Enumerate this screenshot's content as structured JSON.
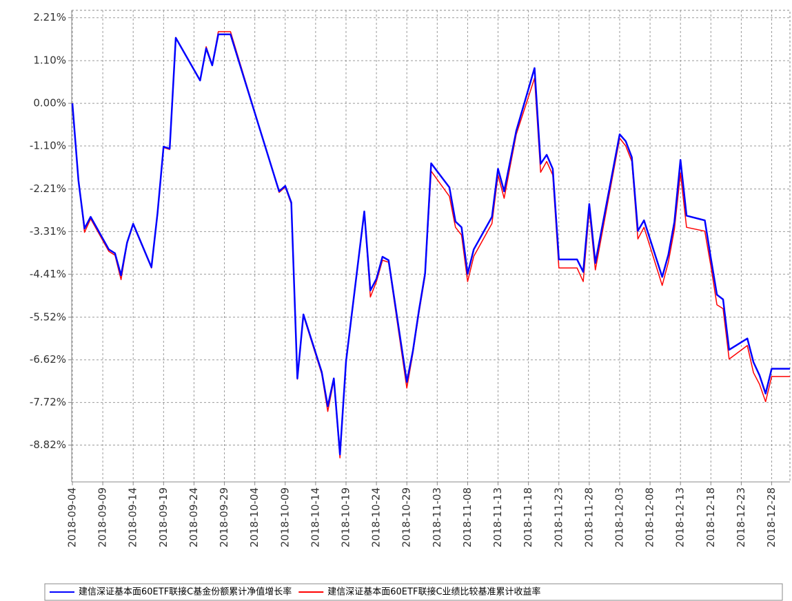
{
  "chart_data": {
    "type": "line",
    "x": [
      "2018-09-04",
      "2018-09-05",
      "2018-09-06",
      "2018-09-07",
      "2018-09-10",
      "2018-09-11",
      "2018-09-12",
      "2018-09-13",
      "2018-09-14",
      "2018-09-17",
      "2018-09-18",
      "2018-09-19",
      "2018-09-20",
      "2018-09-21",
      "2018-09-25",
      "2018-09-26",
      "2018-09-27",
      "2018-09-28",
      "2018-09-30",
      "2018-10-08",
      "2018-10-09",
      "2018-10-10",
      "2018-10-11",
      "2018-10-12",
      "2018-10-15",
      "2018-10-16",
      "2018-10-17",
      "2018-10-18",
      "2018-10-19",
      "2018-10-22",
      "2018-10-23",
      "2018-10-24",
      "2018-10-25",
      "2018-10-26",
      "2018-10-29",
      "2018-10-30",
      "2018-10-31",
      "2018-11-01",
      "2018-11-02",
      "2018-11-05",
      "2018-11-06",
      "2018-11-07",
      "2018-11-08",
      "2018-11-09",
      "2018-11-12",
      "2018-11-13",
      "2018-11-14",
      "2018-11-15",
      "2018-11-16",
      "2018-11-19",
      "2018-11-20",
      "2018-11-21",
      "2018-11-22",
      "2018-11-23",
      "2018-11-26",
      "2018-11-27",
      "2018-11-28",
      "2018-11-29",
      "2018-11-30",
      "2018-12-03",
      "2018-12-04",
      "2018-12-05",
      "2018-12-06",
      "2018-12-07",
      "2018-12-10",
      "2018-12-11",
      "2018-12-12",
      "2018-12-13",
      "2018-12-14",
      "2018-12-17",
      "2018-12-18",
      "2018-12-19",
      "2018-12-20",
      "2018-12-21",
      "2018-12-24",
      "2018-12-25",
      "2018-12-26",
      "2018-12-27",
      "2018-12-28",
      "2018-12-31"
    ],
    "series": [
      {
        "name": "建信深证基本面60ETF联接C基金份额累计净值增长率",
        "color": "#0000ff",
        "values": [
          0,
          -1.99,
          -3.23,
          -2.93,
          -3.77,
          -3.87,
          -4.44,
          -3.59,
          -3.11,
          -4.23,
          -2.84,
          -1.12,
          -1.17,
          1.69,
          0.59,
          1.42,
          0.98,
          1.78,
          1.78,
          -2.27,
          -2.13,
          -2.56,
          -7.1,
          -5.45,
          -6.93,
          -7.82,
          -7.1,
          -9.06,
          -6.66,
          -2.79,
          -4.83,
          -4.53,
          -3.96,
          -4.05,
          -7.19,
          -6.39,
          -5.33,
          -4.39,
          -1.55,
          -2.17,
          -3.05,
          -3.2,
          -4.4,
          -3.77,
          -2.93,
          -1.69,
          -2.27,
          -1.49,
          -0.71,
          0.91,
          -1.56,
          -1.33,
          -1.69,
          -4.03,
          -4.03,
          -4.35,
          -2.6,
          -4.12,
          -3.29,
          -0.8,
          -0.98,
          -1.39,
          -3.29,
          -3.02,
          -4.48,
          -3.91,
          -3.06,
          -1.46,
          -2.9,
          -3.02,
          -4.0,
          -4.94,
          -5.06,
          -6.36,
          -6.07,
          -6.68,
          -7.02,
          -7.49,
          -6.85,
          -6.85
        ]
      },
      {
        "name": "建信深证基本面60ETF联接C业绩比较基准累计收益率",
        "color": "#ff0000",
        "values": [
          0,
          -1.95,
          -3.33,
          -2.98,
          -3.82,
          -3.92,
          -4.55,
          -3.62,
          -3.13,
          -4.25,
          -2.88,
          -1.14,
          -1.19,
          1.7,
          0.6,
          1.46,
          1.0,
          1.85,
          1.85,
          -2.3,
          -2.16,
          -2.6,
          -7.12,
          -5.48,
          -6.98,
          -7.95,
          -7.15,
          -9.15,
          -6.7,
          -2.82,
          -5.0,
          -4.6,
          -4.05,
          -4.1,
          -7.35,
          -6.45,
          -5.4,
          -4.45,
          -1.75,
          -2.4,
          -3.2,
          -3.4,
          -4.6,
          -3.95,
          -3.1,
          -1.85,
          -2.45,
          -1.62,
          -0.8,
          0.65,
          -1.78,
          -1.5,
          -1.85,
          -4.25,
          -4.25,
          -4.6,
          -2.75,
          -4.3,
          -3.45,
          -0.9,
          -1.1,
          -1.5,
          -3.5,
          -3.2,
          -4.7,
          -4.1,
          -3.25,
          -1.8,
          -3.2,
          -3.3,
          -4.2,
          -5.2,
          -5.3,
          -6.6,
          -6.25,
          -6.95,
          -7.25,
          -7.7,
          -7.05,
          -7.05
        ]
      }
    ],
    "xlim": [
      "2018-09-04",
      "2018-12-31"
    ],
    "xticks": [
      "2018-09-04",
      "2018-09-09",
      "2018-09-14",
      "2018-09-19",
      "2018-09-24",
      "2018-09-29",
      "2018-10-04",
      "2018-10-09",
      "2018-10-14",
      "2018-10-19",
      "2018-10-24",
      "2018-10-29",
      "2018-11-03",
      "2018-11-08",
      "2018-11-13",
      "2018-11-18",
      "2018-11-23",
      "2018-11-28",
      "2018-12-03",
      "2018-12-08",
      "2018-12-13",
      "2018-12-18",
      "2018-12-23",
      "2018-12-28"
    ],
    "ylim": [
      -9.77,
      2.4
    ],
    "yticks": [
      {
        "value": 2.21,
        "label": "2.21%"
      },
      {
        "value": 1.1,
        "label": "1.10%"
      },
      {
        "value": 0,
        "label": "0.00%"
      },
      {
        "value": -1.1,
        "label": "-1.10%"
      },
      {
        "value": -2.21,
        "label": "-2.21%"
      },
      {
        "value": -3.31,
        "label": "-3.31%"
      },
      {
        "value": -4.41,
        "label": "-4.41%"
      },
      {
        "value": -5.52,
        "label": "-5.52%"
      },
      {
        "value": -6.62,
        "label": "-6.62%"
      },
      {
        "value": -7.72,
        "label": "-7.72%"
      },
      {
        "value": -8.82,
        "label": "-8.82%"
      }
    ],
    "grid": true,
    "legend": "bottom"
  }
}
